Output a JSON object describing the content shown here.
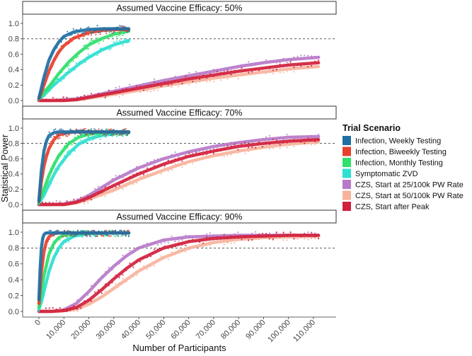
{
  "chart_data": {
    "type": "line",
    "ylabel": "Statistical Power",
    "xlabel": "Number of Participants",
    "ylim": [
      0,
      1.05
    ],
    "xlim": [
      0,
      112000
    ],
    "yticks": [
      0.0,
      0.2,
      0.4,
      0.6,
      0.8,
      1.0
    ],
    "ytick_labels": [
      "0.0",
      "0.2",
      "0.4",
      "0.6",
      "0.8",
      "1.0"
    ],
    "xticks": [
      0,
      10000,
      20000,
      30000,
      40000,
      50000,
      60000,
      70000,
      80000,
      90000,
      100000,
      110000
    ],
    "xtick_labels": [
      "0",
      "10,000",
      "20,000",
      "30,000",
      "40,000",
      "50,000",
      "60,000",
      "70,000",
      "80,000",
      "90,000",
      "100,000",
      "110,000"
    ],
    "reference_line": 0.8,
    "legend": {
      "title": "Trial Scenario",
      "position": "right",
      "entries": [
        {
          "name": "Infection, Weekly Testing",
          "color": "#1f6fa3"
        },
        {
          "name": "Infection, Biweekly Testing",
          "color": "#e8402c"
        },
        {
          "name": "Infection, Monthly Testing",
          "color": "#2fe06a"
        },
        {
          "name": "Symptomatic ZVD",
          "color": "#2ee0d0"
        },
        {
          "name": "CZS, Start at 25/100k PW Rate",
          "color": "#b77ac8"
        },
        {
          "name": "CZS, Start at 50/100k PW Rate",
          "color": "#f7b39c"
        },
        {
          "name": "CZS, Start after Peak",
          "color": "#d11f3c"
        }
      ]
    },
    "panels": [
      {
        "title": "Assumed Vaccine Efficacy: 50%",
        "series": [
          {
            "name": "Infection, Weekly Testing",
            "x": [
              0,
              2000,
              4000,
              6000,
              8000,
              10000,
              14000,
              20000,
              26000,
              32000,
              36000
            ],
            "y": [
              0.03,
              0.3,
              0.52,
              0.66,
              0.76,
              0.83,
              0.89,
              0.92,
              0.93,
              0.93,
              0.93
            ]
          },
          {
            "name": "Infection, Biweekly Testing",
            "x": [
              0,
              2000,
              4000,
              6000,
              8000,
              10000,
              14000,
              20000,
              26000,
              32000,
              36000
            ],
            "y": [
              0.02,
              0.2,
              0.38,
              0.52,
              0.63,
              0.71,
              0.81,
              0.88,
              0.91,
              0.92,
              0.92
            ]
          },
          {
            "name": "Infection, Monthly Testing",
            "x": [
              0,
              2000,
              5000,
              8000,
              12000,
              16000,
              20000,
              25000,
              30000,
              36000
            ],
            "y": [
              0.02,
              0.1,
              0.22,
              0.35,
              0.5,
              0.62,
              0.72,
              0.8,
              0.86,
              0.9
            ]
          },
          {
            "name": "Symptomatic ZVD",
            "x": [
              0,
              2000,
              5000,
              8000,
              12000,
              16000,
              20000,
              25000,
              30000,
              36000
            ],
            "y": [
              0.02,
              0.07,
              0.17,
              0.26,
              0.37,
              0.47,
              0.56,
              0.65,
              0.72,
              0.78
            ]
          },
          {
            "name": "CZS, Start at 25/100k PW Rate",
            "x": [
              0,
              5000,
              10000,
              15000,
              20000,
              30000,
              40000,
              50000,
              60000,
              70000,
              80000,
              90000,
              100000,
              112000
            ],
            "y": [
              0.0,
              0.0,
              0.01,
              0.02,
              0.05,
              0.12,
              0.19,
              0.26,
              0.32,
              0.38,
              0.44,
              0.49,
              0.53,
              0.56
            ]
          },
          {
            "name": "CZS, Start at 50/100k PW Rate",
            "x": [
              0,
              5000,
              10000,
              15000,
              20000,
              30000,
              40000,
              50000,
              60000,
              70000,
              80000,
              90000,
              100000,
              112000
            ],
            "y": [
              0.0,
              0.0,
              0.0,
              0.01,
              0.03,
              0.08,
              0.13,
              0.19,
              0.24,
              0.29,
              0.33,
              0.37,
              0.41,
              0.44
            ]
          },
          {
            "name": "CZS, Start after Peak",
            "x": [
              0,
              5000,
              10000,
              15000,
              20000,
              30000,
              40000,
              50000,
              60000,
              70000,
              80000,
              90000,
              100000,
              112000
            ],
            "y": [
              0.0,
              0.0,
              0.0,
              0.01,
              0.04,
              0.1,
              0.16,
              0.22,
              0.28,
              0.33,
              0.38,
              0.42,
              0.46,
              0.49
            ]
          }
        ]
      },
      {
        "title": "Assumed Vaccine Efficacy: 70%",
        "series": [
          {
            "name": "Infection, Weekly Testing",
            "x": [
              0,
              1000,
              2000,
              3000,
              4000,
              6000,
              8000,
              12000,
              20000,
              30000,
              36000
            ],
            "y": [
              0.05,
              0.45,
              0.7,
              0.83,
              0.9,
              0.94,
              0.95,
              0.95,
              0.95,
              0.95,
              0.95
            ]
          },
          {
            "name": "Infection, Biweekly Testing",
            "x": [
              0,
              1000,
              2000,
              3000,
              4000,
              6000,
              8000,
              10000,
              14000,
              20000,
              30000,
              36000
            ],
            "y": [
              0.04,
              0.3,
              0.5,
              0.63,
              0.73,
              0.85,
              0.91,
              0.93,
              0.95,
              0.95,
              0.95,
              0.95
            ]
          },
          {
            "name": "Infection, Monthly Testing",
            "x": [
              0,
              2000,
              4000,
              6000,
              8000,
              12000,
              16000,
              20000,
              26000,
              32000,
              36000
            ],
            "y": [
              0.03,
              0.2,
              0.38,
              0.52,
              0.64,
              0.8,
              0.88,
              0.92,
              0.94,
              0.95,
              0.95
            ]
          },
          {
            "name": "Symptomatic ZVD",
            "x": [
              0,
              2000,
              4000,
              6000,
              8000,
              12000,
              16000,
              20000,
              26000,
              32000,
              36000
            ],
            "y": [
              0.02,
              0.12,
              0.26,
              0.39,
              0.5,
              0.67,
              0.79,
              0.86,
              0.91,
              0.93,
              0.94
            ]
          },
          {
            "name": "CZS, Start at 25/100k PW Rate",
            "x": [
              0,
              5000,
              10000,
              15000,
              20000,
              30000,
              40000,
              50000,
              60000,
              70000,
              80000,
              90000,
              100000,
              112000
            ],
            "y": [
              0.0,
              0.0,
              0.01,
              0.04,
              0.12,
              0.32,
              0.48,
              0.6,
              0.69,
              0.76,
              0.81,
              0.85,
              0.88,
              0.89
            ]
          },
          {
            "name": "CZS, Start at 50/100k PW Rate",
            "x": [
              0,
              5000,
              10000,
              15000,
              20000,
              30000,
              40000,
              50000,
              60000,
              70000,
              80000,
              90000,
              100000,
              112000
            ],
            "y": [
              0.0,
              0.0,
              0.0,
              0.02,
              0.07,
              0.19,
              0.33,
              0.45,
              0.56,
              0.64,
              0.7,
              0.75,
              0.79,
              0.82
            ]
          },
          {
            "name": "CZS, Start after Peak",
            "x": [
              0,
              5000,
              10000,
              15000,
              20000,
              30000,
              40000,
              50000,
              60000,
              70000,
              80000,
              90000,
              100000,
              112000
            ],
            "y": [
              0.0,
              0.0,
              0.0,
              0.03,
              0.09,
              0.25,
              0.4,
              0.53,
              0.63,
              0.7,
              0.76,
              0.8,
              0.83,
              0.85
            ]
          }
        ]
      },
      {
        "title": "Assumed Vaccine Efficacy: 90%",
        "series": [
          {
            "name": "Infection, Weekly Testing",
            "x": [
              0,
              500,
              1000,
              1500,
              2000,
              3000,
              4000,
              6000,
              10000,
              20000,
              36000
            ],
            "y": [
              0.15,
              0.55,
              0.8,
              0.92,
              0.97,
              0.99,
              0.99,
              0.99,
              0.99,
              0.99,
              0.99
            ]
          },
          {
            "name": "Infection, Biweekly Testing",
            "x": [
              0,
              1000,
              2000,
              3000,
              4000,
              6000,
              8000,
              12000,
              20000,
              36000
            ],
            "y": [
              0.1,
              0.5,
              0.75,
              0.88,
              0.94,
              0.98,
              0.99,
              0.99,
              0.99,
              0.99
            ]
          },
          {
            "name": "Infection, Monthly Testing",
            "x": [
              0,
              1000,
              2000,
              4000,
              6000,
              8000,
              10000,
              14000,
              20000,
              30000,
              36000
            ],
            "y": [
              0.05,
              0.25,
              0.45,
              0.72,
              0.86,
              0.93,
              0.96,
              0.98,
              0.99,
              0.99,
              0.99
            ]
          },
          {
            "name": "Symptomatic ZVD",
            "x": [
              0,
              1000,
              2000,
              4000,
              6000,
              8000,
              10000,
              14000,
              20000,
              30000,
              36000
            ],
            "y": [
              0.03,
              0.12,
              0.25,
              0.5,
              0.68,
              0.8,
              0.88,
              0.95,
              0.98,
              0.99,
              0.99
            ]
          },
          {
            "name": "CZS, Start at 25/100k PW Rate",
            "x": [
              0,
              5000,
              10000,
              15000,
              20000,
              25000,
              30000,
              35000,
              40000,
              50000,
              60000,
              70000,
              80000,
              90000,
              100000,
              112000
            ],
            "y": [
              0.0,
              0.0,
              0.02,
              0.1,
              0.25,
              0.42,
              0.57,
              0.7,
              0.8,
              0.9,
              0.94,
              0.95,
              0.96,
              0.96,
              0.96,
              0.96
            ]
          },
          {
            "name": "CZS, Start at 50/100k PW Rate",
            "x": [
              0,
              5000,
              10000,
              15000,
              20000,
              25000,
              30000,
              35000,
              40000,
              50000,
              60000,
              70000,
              80000,
              90000,
              100000,
              112000
            ],
            "y": [
              0.0,
              0.0,
              0.01,
              0.03,
              0.09,
              0.18,
              0.29,
              0.4,
              0.51,
              0.68,
              0.8,
              0.87,
              0.91,
              0.93,
              0.94,
              0.95
            ]
          },
          {
            "name": "CZS, Start after Peak",
            "x": [
              0,
              5000,
              10000,
              15000,
              20000,
              25000,
              30000,
              35000,
              40000,
              50000,
              60000,
              70000,
              80000,
              90000,
              100000,
              112000
            ],
            "y": [
              0.0,
              0.0,
              0.01,
              0.05,
              0.14,
              0.27,
              0.41,
              0.54,
              0.65,
              0.8,
              0.88,
              0.92,
              0.94,
              0.95,
              0.96,
              0.96
            ]
          }
        ]
      }
    ]
  }
}
